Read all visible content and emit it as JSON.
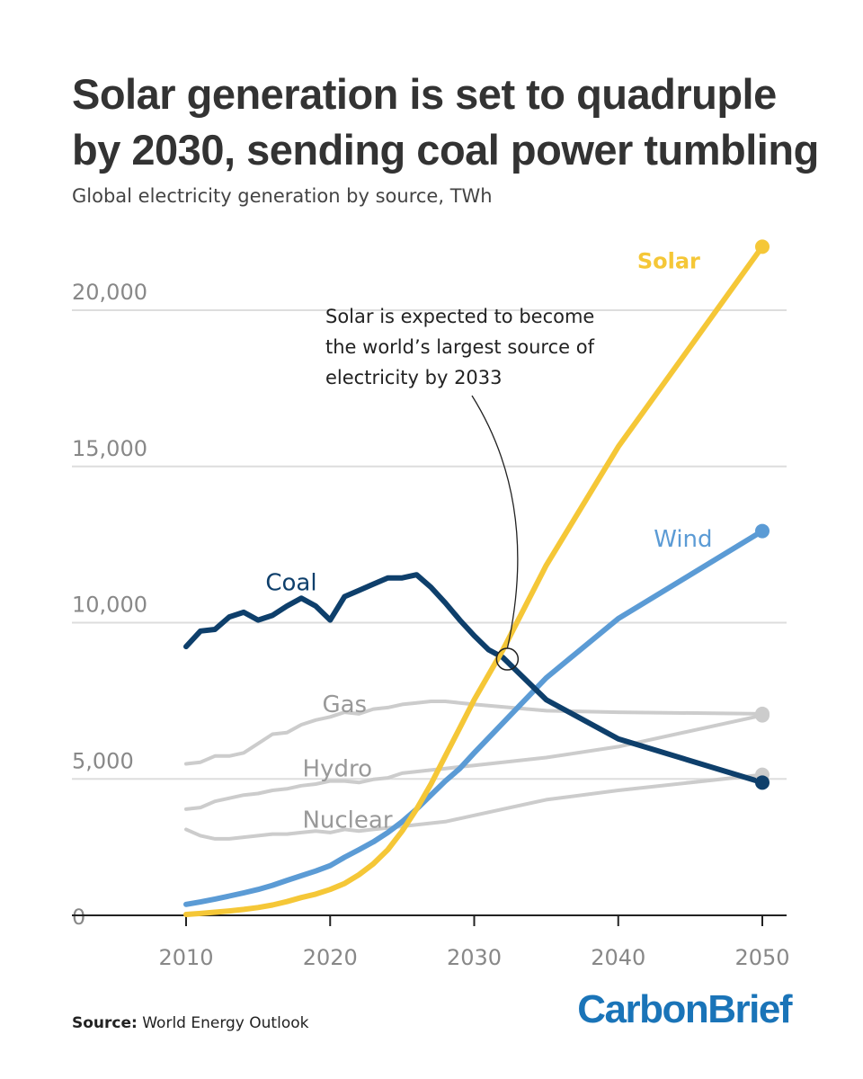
{
  "title": "Solar generation is set to quadruple by 2030, sending coal power tumbling",
  "subtitle": "Global electricity generation by source, TWh",
  "annotation": [
    "Solar is expected to become",
    "the world’s largest source of",
    "electricity by 2033"
  ],
  "source_label": "Source:",
  "source_text": "World Energy Outlook",
  "logo": "CarbonBrief",
  "colors": {
    "solar": "#f5c737",
    "wind": "#5b9bd5",
    "coal": "#0e3f6b",
    "gray": "#cccccc",
    "grid": "#dddddd",
    "tick": "#888888",
    "text": "#333333"
  },
  "chart_data": {
    "type": "line",
    "title": "Solar generation is set to quadruple by 2030, sending coal power tumbling",
    "subtitle": "Global electricity generation by source, TWh",
    "xlabel": "",
    "ylabel": "",
    "xlim": [
      2002,
      2052
    ],
    "ylim": [
      0,
      21000
    ],
    "xticks": [
      2010,
      2020,
      2030,
      2040,
      2050
    ],
    "xtick_labels": [
      "2010",
      "2020",
      "2030",
      "2040",
      "2050"
    ],
    "yticks": [
      0,
      5000,
      10000,
      15000,
      20000
    ],
    "ytick_labels": [
      "0",
      "5,000",
      "10,000",
      "15,000",
      "20,000"
    ],
    "grid": "horizontal",
    "series": [
      {
        "name": "Gas",
        "color_key": "gray",
        "end_marker": true,
        "label_pos": "above",
        "label_at": [
          2021,
          6500
        ],
        "points": [
          [
            2010,
            4850
          ],
          [
            2011,
            4900
          ],
          [
            2012,
            5100
          ],
          [
            2013,
            5100
          ],
          [
            2014,
            5200
          ],
          [
            2015,
            5500
          ],
          [
            2016,
            5800
          ],
          [
            2017,
            5850
          ],
          [
            2018,
            6100
          ],
          [
            2019,
            6250
          ],
          [
            2020,
            6350
          ],
          [
            2021,
            6500
          ],
          [
            2022,
            6450
          ],
          [
            2023,
            6600
          ],
          [
            2024,
            6650
          ],
          [
            2025,
            6750
          ],
          [
            2026,
            6800
          ],
          [
            2027,
            6850
          ],
          [
            2028,
            6850
          ],
          [
            2029,
            6800
          ],
          [
            2030,
            6750
          ],
          [
            2035,
            6550
          ],
          [
            2040,
            6500
          ],
          [
            2050,
            6450
          ]
        ]
      },
      {
        "name": "Hydro",
        "color_key": "gray",
        "end_marker": true,
        "label_pos": "above",
        "label_at": [
          2020.5,
          4450
        ],
        "points": [
          [
            2010,
            3400
          ],
          [
            2011,
            3450
          ],
          [
            2012,
            3650
          ],
          [
            2013,
            3750
          ],
          [
            2014,
            3850
          ],
          [
            2015,
            3900
          ],
          [
            2016,
            4000
          ],
          [
            2017,
            4050
          ],
          [
            2018,
            4150
          ],
          [
            2019,
            4200
          ],
          [
            2020,
            4300
          ],
          [
            2021,
            4300
          ],
          [
            2022,
            4250
          ],
          [
            2023,
            4350
          ],
          [
            2024,
            4400
          ],
          [
            2025,
            4550
          ],
          [
            2026,
            4600
          ],
          [
            2027,
            4650
          ],
          [
            2028,
            4700
          ],
          [
            2029,
            4750
          ],
          [
            2030,
            4800
          ],
          [
            2035,
            5050
          ],
          [
            2040,
            5400
          ],
          [
            2050,
            6400
          ]
        ]
      },
      {
        "name": "Nuclear",
        "color_key": "gray",
        "end_marker": true,
        "label_pos": "above",
        "label_at": [
          2021.2,
          2800
        ],
        "points": [
          [
            2010,
            2750
          ],
          [
            2011,
            2550
          ],
          [
            2012,
            2450
          ],
          [
            2013,
            2450
          ],
          [
            2014,
            2500
          ],
          [
            2015,
            2550
          ],
          [
            2016,
            2600
          ],
          [
            2017,
            2600
          ],
          [
            2018,
            2650
          ],
          [
            2019,
            2700
          ],
          [
            2020,
            2650
          ],
          [
            2021,
            2750
          ],
          [
            2022,
            2700
          ],
          [
            2023,
            2750
          ],
          [
            2024,
            2800
          ],
          [
            2025,
            2850
          ],
          [
            2026,
            2900
          ],
          [
            2027,
            2950
          ],
          [
            2028,
            3000
          ],
          [
            2029,
            3100
          ],
          [
            2030,
            3200
          ],
          [
            2035,
            3700
          ],
          [
            2040,
            4000
          ],
          [
            2050,
            4500
          ]
        ]
      },
      {
        "name": "Wind",
        "color_key": "wind",
        "end_marker": true,
        "label_pos": "left",
        "label_at": [
          2044.5,
          11800
        ],
        "points": [
          [
            2010,
            350
          ],
          [
            2011,
            430
          ],
          [
            2012,
            520
          ],
          [
            2013,
            620
          ],
          [
            2014,
            720
          ],
          [
            2015,
            830
          ],
          [
            2016,
            960
          ],
          [
            2017,
            1120
          ],
          [
            2018,
            1270
          ],
          [
            2019,
            1420
          ],
          [
            2020,
            1590
          ],
          [
            2021,
            1860
          ],
          [
            2022,
            2100
          ],
          [
            2023,
            2350
          ],
          [
            2024,
            2650
          ],
          [
            2025,
            3000
          ],
          [
            2026,
            3400
          ],
          [
            2027,
            3850
          ],
          [
            2028,
            4300
          ],
          [
            2029,
            4700
          ],
          [
            2030,
            5200
          ],
          [
            2035,
            7600
          ],
          [
            2040,
            9500
          ],
          [
            2050,
            12300
          ]
        ]
      },
      {
        "name": "Coal",
        "color_key": "coal",
        "end_marker": true,
        "label_pos": "above",
        "label_at": [
          2017.3,
          10400
        ],
        "points": [
          [
            2010,
            8600
          ],
          [
            2011,
            9100
          ],
          [
            2012,
            9150
          ],
          [
            2013,
            9550
          ],
          [
            2014,
            9700
          ],
          [
            2015,
            9450
          ],
          [
            2016,
            9600
          ],
          [
            2017,
            9900
          ],
          [
            2018,
            10150
          ],
          [
            2019,
            9900
          ],
          [
            2020,
            9450
          ],
          [
            2021,
            10200
          ],
          [
            2022,
            10400
          ],
          [
            2023,
            10600
          ],
          [
            2024,
            10800
          ],
          [
            2025,
            10800
          ],
          [
            2026,
            10900
          ],
          [
            2027,
            10500
          ],
          [
            2028,
            10000
          ],
          [
            2029,
            9450
          ],
          [
            2030,
            8950
          ],
          [
            2031,
            8500
          ],
          [
            2032,
            8250
          ],
          [
            2035,
            6900
          ],
          [
            2040,
            5650
          ],
          [
            2050,
            4250
          ]
        ]
      },
      {
        "name": "Solar",
        "color_key": "solar",
        "end_marker": true,
        "label_pos": "left",
        "label_at": [
          2043.5,
          20700
        ],
        "points": [
          [
            2010,
            30
          ],
          [
            2011,
            60
          ],
          [
            2012,
            100
          ],
          [
            2013,
            140
          ],
          [
            2014,
            190
          ],
          [
            2015,
            250
          ],
          [
            2016,
            330
          ],
          [
            2017,
            440
          ],
          [
            2018,
            570
          ],
          [
            2019,
            680
          ],
          [
            2020,
            830
          ],
          [
            2021,
            1020
          ],
          [
            2022,
            1300
          ],
          [
            2023,
            1650
          ],
          [
            2024,
            2100
          ],
          [
            2025,
            2700
          ],
          [
            2026,
            3400
          ],
          [
            2027,
            4200
          ],
          [
            2028,
            5100
          ],
          [
            2029,
            6000
          ],
          [
            2030,
            6900
          ],
          [
            2032,
            8500
          ],
          [
            2035,
            11200
          ],
          [
            2040,
            15000
          ],
          [
            2050,
            21400
          ]
        ]
      }
    ],
    "annotations": [
      {
        "text": "Solar is expected to become the world’s largest source of electricity by 2033",
        "point": [
          2032.3,
          8200
        ]
      }
    ]
  }
}
